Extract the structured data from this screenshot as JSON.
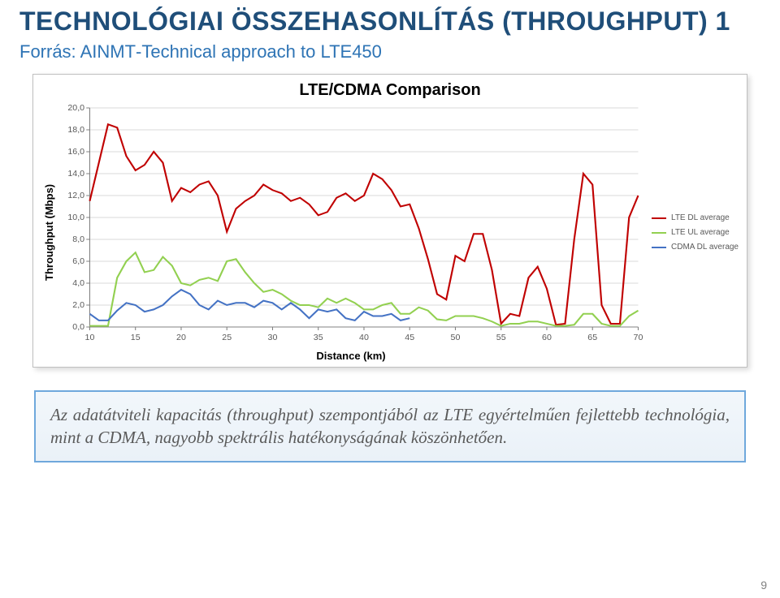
{
  "title": "TECHNOLÓGIAI ÖSSZEHASONLÍTÁS (THROUGHPUT) 1",
  "subtitle": "Forrás:  AINMT‑Technical approach to LTE450",
  "page_number": "9",
  "caption": "Az adatátviteli kapacitás (throughput) szempontjából az LTE egyértelműen fejlettebb technológia, mint a CDMA, nagyobb spektrális hatékonyságának köszönhetően.",
  "chart": {
    "type": "line",
    "title": "LTE/CDMA Comparison",
    "xlabel": "Distance (km)",
    "ylabel": "Throughput (Mbps)",
    "background_color": "#ffffff",
    "grid_color": "#d9d9d9",
    "axis_color": "#808080",
    "tick_font_size": 10,
    "label_font_size": 13,
    "title_font_size": 20,
    "xlim": [
      10,
      70
    ],
    "ylim": [
      0,
      20
    ],
    "xticks": [
      10,
      15,
      20,
      25,
      30,
      35,
      40,
      45,
      50,
      55,
      60,
      65,
      70
    ],
    "yticks": [
      0,
      2,
      4,
      6,
      8,
      10,
      12,
      14,
      16,
      18,
      20
    ],
    "ytick_labels": [
      "0,0",
      "2,0",
      "4,0",
      "6,0",
      "8,0",
      "10,0",
      "12,0",
      "14,0",
      "16,0",
      "18,0",
      "20,0"
    ],
    "line_width": 2,
    "legend_font_size": 10,
    "series": [
      {
        "name": "LTE DL average",
        "color": "#c00000",
        "data": [
          [
            10,
            11.5
          ],
          [
            11,
            15.0
          ],
          [
            12,
            18.5
          ],
          [
            13,
            18.2
          ],
          [
            14,
            15.6
          ],
          [
            15,
            14.3
          ],
          [
            16,
            14.8
          ],
          [
            17,
            16.0
          ],
          [
            18,
            15.0
          ],
          [
            19,
            11.5
          ],
          [
            20,
            12.7
          ],
          [
            21,
            12.3
          ],
          [
            22,
            13.0
          ],
          [
            23,
            13.3
          ],
          [
            24,
            12.0
          ],
          [
            25,
            8.7
          ],
          [
            26,
            10.8
          ],
          [
            27,
            11.5
          ],
          [
            28,
            12.0
          ],
          [
            29,
            13.0
          ],
          [
            30,
            12.5
          ],
          [
            31,
            12.2
          ],
          [
            32,
            11.5
          ],
          [
            33,
            11.8
          ],
          [
            34,
            11.2
          ],
          [
            35,
            10.2
          ],
          [
            36,
            10.5
          ],
          [
            37,
            11.8
          ],
          [
            38,
            12.2
          ],
          [
            39,
            11.5
          ],
          [
            40,
            12.0
          ],
          [
            41,
            14.0
          ],
          [
            42,
            13.5
          ],
          [
            43,
            12.5
          ],
          [
            44,
            11.0
          ],
          [
            45,
            11.2
          ],
          [
            46,
            9.0
          ],
          [
            47,
            6.2
          ],
          [
            48,
            3.0
          ],
          [
            49,
            2.5
          ],
          [
            50,
            6.5
          ],
          [
            51,
            6.0
          ],
          [
            52,
            8.5
          ],
          [
            53,
            8.5
          ],
          [
            54,
            5.2
          ],
          [
            55,
            0.3
          ],
          [
            56,
            1.2
          ],
          [
            57,
            1.0
          ],
          [
            58,
            4.5
          ],
          [
            59,
            5.5
          ],
          [
            60,
            3.5
          ],
          [
            61,
            0.2
          ],
          [
            62,
            0.3
          ],
          [
            63,
            8.0
          ],
          [
            64,
            14.0
          ],
          [
            65,
            13.0
          ],
          [
            66,
            2.0
          ],
          [
            67,
            0.3
          ],
          [
            68,
            0.3
          ],
          [
            69,
            10.0
          ],
          [
            70,
            12.0
          ]
        ]
      },
      {
        "name": "LTE UL average",
        "color": "#92d050",
        "data": [
          [
            10,
            0.1
          ],
          [
            11,
            0.1
          ],
          [
            12,
            0.1
          ],
          [
            13,
            4.5
          ],
          [
            14,
            6.0
          ],
          [
            15,
            6.8
          ],
          [
            16,
            5.0
          ],
          [
            17,
            5.2
          ],
          [
            18,
            6.4
          ],
          [
            19,
            5.6
          ],
          [
            20,
            4.0
          ],
          [
            21,
            3.8
          ],
          [
            22,
            4.3
          ],
          [
            23,
            4.5
          ],
          [
            24,
            4.2
          ],
          [
            25,
            6.0
          ],
          [
            26,
            6.2
          ],
          [
            27,
            5.0
          ],
          [
            28,
            4.0
          ],
          [
            29,
            3.2
          ],
          [
            30,
            3.4
          ],
          [
            31,
            3.0
          ],
          [
            32,
            2.4
          ],
          [
            33,
            2.0
          ],
          [
            34,
            2.0
          ],
          [
            35,
            1.8
          ],
          [
            36,
            2.6
          ],
          [
            37,
            2.2
          ],
          [
            38,
            2.6
          ],
          [
            39,
            2.2
          ],
          [
            40,
            1.6
          ],
          [
            41,
            1.6
          ],
          [
            42,
            2.0
          ],
          [
            43,
            2.2
          ],
          [
            44,
            1.2
          ],
          [
            45,
            1.2
          ],
          [
            46,
            1.8
          ],
          [
            47,
            1.5
          ],
          [
            48,
            0.7
          ],
          [
            49,
            0.6
          ],
          [
            50,
            1.0
          ],
          [
            51,
            1.0
          ],
          [
            52,
            1.0
          ],
          [
            53,
            0.8
          ],
          [
            54,
            0.5
          ],
          [
            55,
            0.1
          ],
          [
            56,
            0.3
          ],
          [
            57,
            0.3
          ],
          [
            58,
            0.5
          ],
          [
            59,
            0.5
          ],
          [
            60,
            0.3
          ],
          [
            61,
            0.1
          ],
          [
            62,
            0.1
          ],
          [
            63,
            0.2
          ],
          [
            64,
            1.2
          ],
          [
            65,
            1.2
          ],
          [
            66,
            0.3
          ],
          [
            67,
            0.1
          ],
          [
            68,
            0.1
          ],
          [
            69,
            1.0
          ],
          [
            70,
            1.5
          ]
        ]
      },
      {
        "name": "CDMA DL average",
        "color": "#4472c4",
        "data": [
          [
            10,
            1.2
          ],
          [
            11,
            0.6
          ],
          [
            12,
            0.6
          ],
          [
            13,
            1.5
          ],
          [
            14,
            2.2
          ],
          [
            15,
            2.0
          ],
          [
            16,
            1.4
          ],
          [
            17,
            1.6
          ],
          [
            18,
            2.0
          ],
          [
            19,
            2.8
          ],
          [
            20,
            3.4
          ],
          [
            21,
            3.0
          ],
          [
            22,
            2.0
          ],
          [
            23,
            1.6
          ],
          [
            24,
            2.4
          ],
          [
            25,
            2.0
          ],
          [
            26,
            2.2
          ],
          [
            27,
            2.2
          ],
          [
            28,
            1.8
          ],
          [
            29,
            2.4
          ],
          [
            30,
            2.2
          ],
          [
            31,
            1.6
          ],
          [
            32,
            2.2
          ],
          [
            33,
            1.6
          ],
          [
            34,
            0.8
          ],
          [
            35,
            1.6
          ],
          [
            36,
            1.4
          ],
          [
            37,
            1.6
          ],
          [
            38,
            0.8
          ],
          [
            39,
            0.6
          ],
          [
            40,
            1.4
          ],
          [
            41,
            1.0
          ],
          [
            42,
            1.0
          ],
          [
            43,
            1.2
          ],
          [
            44,
            0.6
          ],
          [
            45,
            0.8
          ]
        ]
      }
    ]
  },
  "colors": {
    "title": "#1f4e79",
    "subtitle": "#2e74b5",
    "caption_border": "#6fa8dc",
    "caption_text": "#5a5a5a"
  }
}
